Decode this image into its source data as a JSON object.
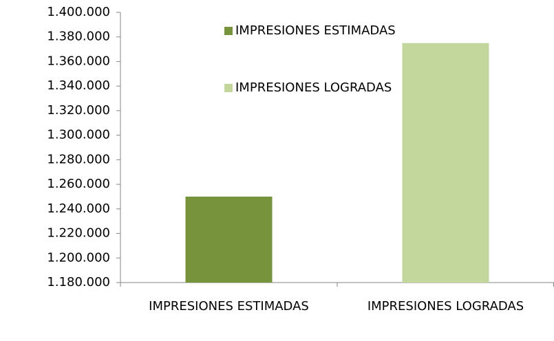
{
  "chart_data": {
    "type": "bar",
    "categories": [
      "IMPRESIONES ESTIMADAS",
      "IMPRESIONES LOGRADAS"
    ],
    "series": [
      {
        "name": "IMPRESIONES ESTIMADAS",
        "color": "#77933c",
        "values": [
          1250000,
          null
        ]
      },
      {
        "name": "IMPRESIONES LOGRADAS",
        "color": "#c3d69b",
        "values": [
          null,
          1375000
        ]
      }
    ],
    "ylim": [
      1180000,
      1400000
    ],
    "yticks": [
      {
        "value": 1180000,
        "label": "1.180.000"
      },
      {
        "value": 1200000,
        "label": "1.200.000"
      },
      {
        "value": 1220000,
        "label": "1.220.000"
      },
      {
        "value": 1240000,
        "label": "1.240.000"
      },
      {
        "value": 1260000,
        "label": "1.260.000"
      },
      {
        "value": 1280000,
        "label": "1.280.000"
      },
      {
        "value": 1300000,
        "label": "1.300.000"
      },
      {
        "value": 1320000,
        "label": "1.320.000"
      },
      {
        "value": 1340000,
        "label": "1.340.000"
      },
      {
        "value": 1360000,
        "label": "1.360.000"
      },
      {
        "value": 1380000,
        "label": "1.380.000"
      },
      {
        "value": 1400000,
        "label": "1.400.000"
      }
    ],
    "grid": false
  }
}
